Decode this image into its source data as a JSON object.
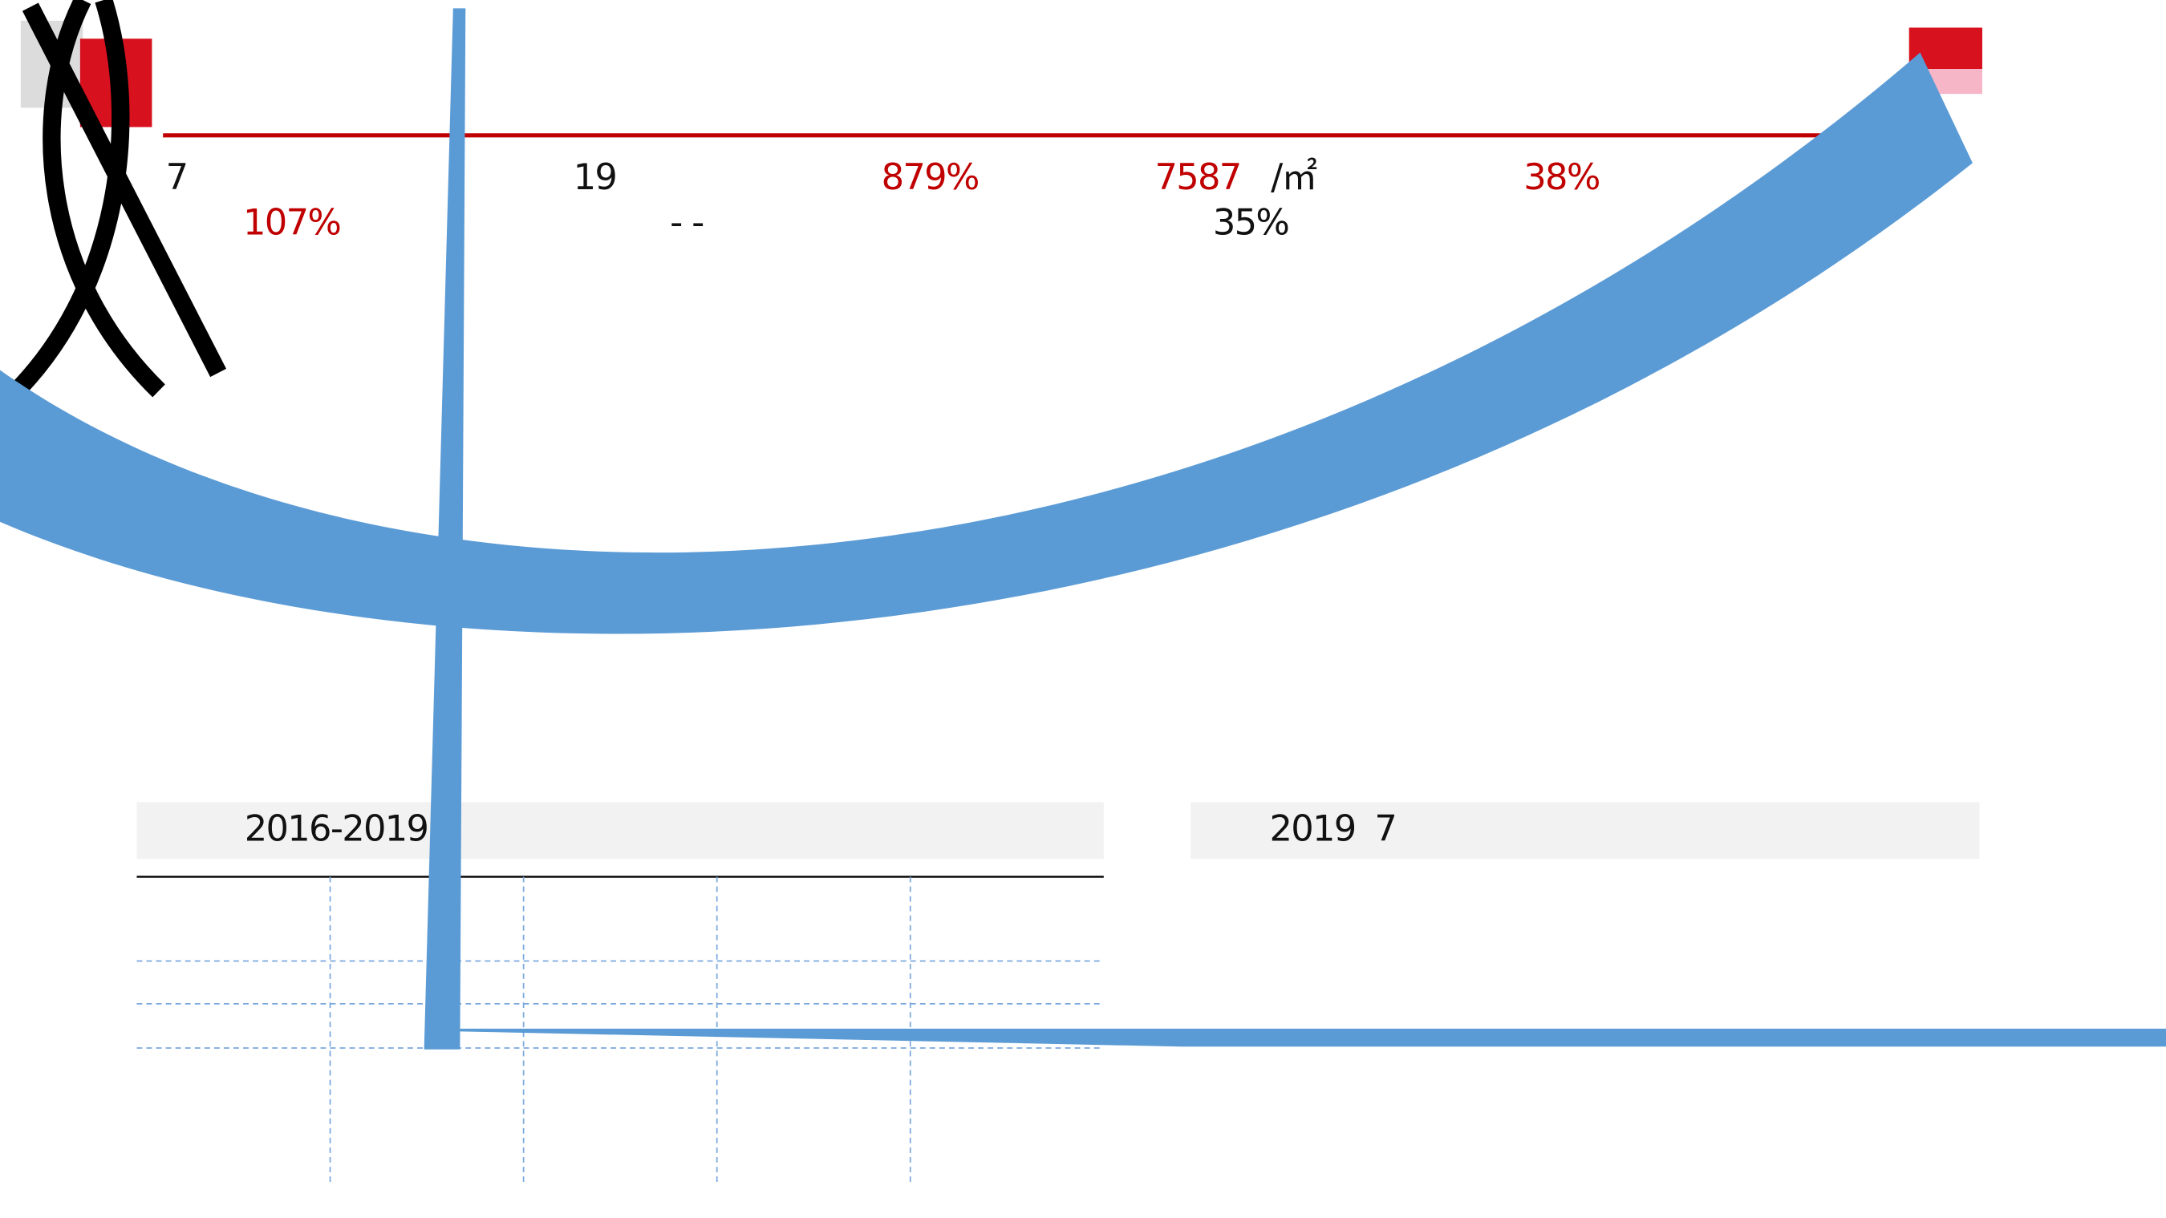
{
  "stats": {
    "row1": [
      "7",
      "19",
      "879%",
      "7587",
      "/㎡",
      "38%"
    ],
    "row2": [
      "107%",
      "- -",
      "35%"
    ]
  },
  "panels": {
    "left": {
      "title": "2016-2019"
    },
    "right": {
      "title": "2019",
      "suffix": "7"
    }
  }
}
